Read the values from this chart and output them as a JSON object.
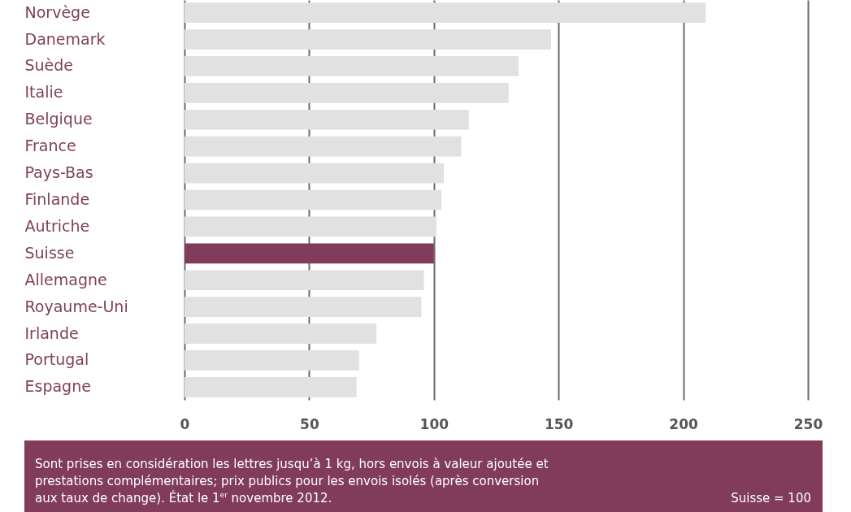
{
  "chart_data": {
    "type": "bar",
    "orientation": "horizontal",
    "categories": [
      "Norvège",
      "Danemark",
      "Suède",
      "Italie",
      "Belgique",
      "France",
      "Pays-Bas",
      "Finlande",
      "Autriche",
      "Suisse",
      "Allemagne",
      "Royaume-Uni",
      "Irlande",
      "Portugal",
      "Espagne"
    ],
    "values": [
      209,
      147,
      134,
      130,
      114,
      111,
      104,
      103,
      101,
      100,
      96,
      95,
      77,
      70,
      69
    ],
    "colors": [
      "#e1e1e1",
      "#e1e1e1",
      "#e1e1e1",
      "#e1e1e1",
      "#e1e1e1",
      "#e1e1e1",
      "#e1e1e1",
      "#e1e1e1",
      "#e1e1e1",
      "#803c5a",
      "#e1e1e1",
      "#e1e1e1",
      "#e1e1e1",
      "#e1e1e1",
      "#e1e1e1"
    ],
    "xlim": [
      0,
      250
    ],
    "xticks": [
      0,
      50,
      100,
      150,
      200,
      250
    ],
    "grid": "x",
    "annotations": [
      "Sont prises en considération les lettres jusqu’à 1 kg, hors envois à valeur ajoutée et prestations complémentaires; prix publics pour les envois isolés (après conversion aux taux de change). État le 1$^{er}$ novembre 2012.",
      "Suisse = 100"
    ]
  }
}
